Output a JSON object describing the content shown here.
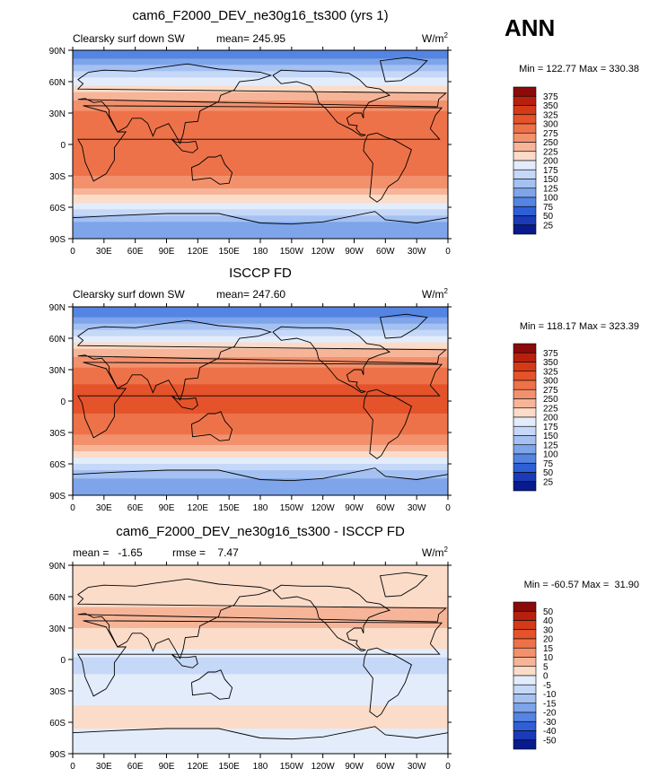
{
  "season_label": "ANN",
  "chart_data": [
    {
      "type": "heatmap",
      "title": "cam6_F2000_DEV_ne30g16_ts300 (yrs 1)",
      "variable_label": "Clearsky surf down SW",
      "stat_text": "mean= 245.95",
      "units_text": "W/m",
      "units_exp": "2",
      "minmax_text": "Min = 122.77 Max = 330.38",
      "x_ticks": [
        "0",
        "30E",
        "60E",
        "90E",
        "120E",
        "150E",
        "180",
        "150W",
        "120W",
        "90W",
        "60W",
        "30W",
        "0"
      ],
      "y_ticks": [
        "90N",
        "60N",
        "30N",
        "0",
        "30S",
        "60S",
        "90S"
      ],
      "colorbar_levels": [
        "375",
        "350",
        "325",
        "300",
        "275",
        "250",
        "225",
        "200",
        "175",
        "150",
        "125",
        "100",
        "75",
        "50",
        "25"
      ],
      "colorbar_colors": [
        "#8b0a0a",
        "#b8200e",
        "#d43a18",
        "#e5532b",
        "#ee7249",
        "#f3916d",
        "#f6b598",
        "#fbdcc9",
        "#e3ecfb",
        "#c5d8f8",
        "#a4c1f2",
        "#7ea4ea",
        "#5585e2",
        "#2e5fd6",
        "#1a3ab8",
        "#091a8c"
      ],
      "lat_profile": [
        [
          90,
          80
        ],
        [
          78,
          110
        ],
        [
          70,
          150
        ],
        [
          64,
          175
        ],
        [
          58,
          195
        ],
        [
          52,
          215
        ],
        [
          46,
          235
        ],
        [
          40,
          255
        ],
        [
          34,
          270
        ],
        [
          28,
          285
        ],
        [
          22,
          290
        ],
        [
          15,
          292
        ],
        [
          8,
          293
        ],
        [
          0,
          295
        ],
        [
          -8,
          293
        ],
        [
          -15,
          292
        ],
        [
          -22,
          288
        ],
        [
          -28,
          280
        ],
        [
          -34,
          268
        ],
        [
          -40,
          255
        ],
        [
          -46,
          235
        ],
        [
          -52,
          210
        ],
        [
          -58,
          190
        ],
        [
          -64,
          165
        ],
        [
          -70,
          140
        ],
        [
          -78,
          115
        ],
        [
          -90,
          105
        ]
      ]
    },
    {
      "type": "heatmap",
      "title": "ISCCP FD",
      "variable_label": "Clearsky surf down SW",
      "stat_text": "mean= 247.60",
      "units_text": "W/m",
      "units_exp": "2",
      "minmax_text": "Min = 118.17 Max = 323.39",
      "x_ticks": [
        "0",
        "30E",
        "60E",
        "90E",
        "120E",
        "150E",
        "180",
        "150W",
        "120W",
        "90W",
        "60W",
        "30W",
        "0"
      ],
      "y_ticks": [
        "90N",
        "60N",
        "30N",
        "0",
        "30S",
        "60S",
        "90S"
      ],
      "colorbar_levels": [
        "375",
        "350",
        "325",
        "300",
        "275",
        "250",
        "225",
        "200",
        "175",
        "150",
        "125",
        "100",
        "75",
        "50",
        "25"
      ],
      "colorbar_colors": [
        "#8b0a0a",
        "#b8200e",
        "#d43a18",
        "#e5532b",
        "#ee7249",
        "#f3916d",
        "#f6b598",
        "#fbdcc9",
        "#e3ecfb",
        "#c5d8f8",
        "#a4c1f2",
        "#7ea4ea",
        "#5585e2",
        "#2e5fd6",
        "#1a3ab8",
        "#091a8c"
      ],
      "lat_profile": [
        [
          90,
          75
        ],
        [
          78,
          105
        ],
        [
          70,
          145
        ],
        [
          64,
          170
        ],
        [
          58,
          195
        ],
        [
          52,
          215
        ],
        [
          46,
          235
        ],
        [
          40,
          255
        ],
        [
          34,
          272
        ],
        [
          28,
          288
        ],
        [
          22,
          295
        ],
        [
          15,
          300
        ],
        [
          8,
          302
        ],
        [
          0,
          305
        ],
        [
          -8,
          302
        ],
        [
          -15,
          298
        ],
        [
          -22,
          290
        ],
        [
          -28,
          282
        ],
        [
          -34,
          270
        ],
        [
          -40,
          255
        ],
        [
          -46,
          235
        ],
        [
          -52,
          210
        ],
        [
          -58,
          185
        ],
        [
          -64,
          160
        ],
        [
          -70,
          135
        ],
        [
          -78,
          112
        ],
        [
          -90,
          100
        ]
      ]
    },
    {
      "type": "heatmap",
      "title": "cam6_F2000_DEV_ne30g16_ts300 - ISCCP FD",
      "variable_label": "",
      "stat_text": "mean =   -1.65          rmse =    7.47",
      "units_text": "W/m",
      "units_exp": "2",
      "minmax_text": "Min = -60.57 Max =  31.90",
      "x_ticks": [
        "0",
        "30E",
        "60E",
        "90E",
        "120E",
        "150E",
        "180",
        "150W",
        "120W",
        "90W",
        "60W",
        "30W",
        "0"
      ],
      "y_ticks": [
        "90N",
        "60N",
        "30N",
        "0",
        "30S",
        "60S",
        "90S"
      ],
      "colorbar_levels": [
        "50",
        "40",
        "30",
        "20",
        "15",
        "10",
        "5",
        "0",
        "-5",
        "-10",
        "-15",
        "-20",
        "-30",
        "-40",
        "-50"
      ],
      "colorbar_colors": [
        "#8b0a0a",
        "#b8200e",
        "#d43a18",
        "#e5532b",
        "#ee7249",
        "#f3916d",
        "#f6b598",
        "#fbdcc9",
        "#e3ecfb",
        "#c5d8f8",
        "#a4c1f2",
        "#7ea4ea",
        "#5585e2",
        "#2e5fd6",
        "#1a3ab8",
        "#091a8c"
      ],
      "lat_profile": [
        [
          90,
          2
        ],
        [
          75,
          3
        ],
        [
          60,
          4
        ],
        [
          50,
          5
        ],
        [
          40,
          6
        ],
        [
          30,
          5
        ],
        [
          20,
          3
        ],
        [
          12,
          1
        ],
        [
          5,
          -2
        ],
        [
          0,
          -6
        ],
        [
          -8,
          -7
        ],
        [
          -15,
          -5
        ],
        [
          -22,
          -3
        ],
        [
          -30,
          -2
        ],
        [
          -40,
          -1
        ],
        [
          -50,
          1
        ],
        [
          -60,
          1
        ],
        [
          -70,
          -1
        ],
        [
          -90,
          -1
        ]
      ]
    }
  ]
}
